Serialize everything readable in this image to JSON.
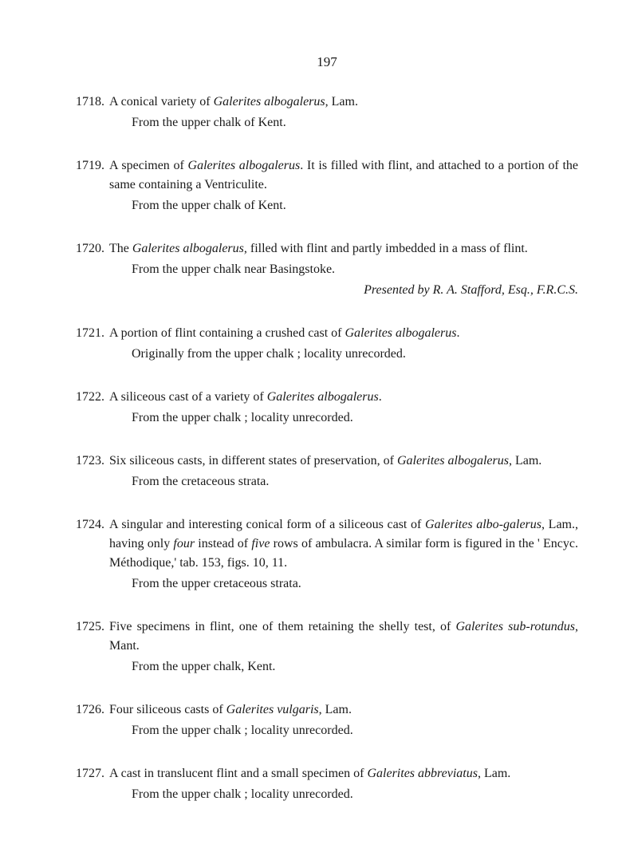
{
  "pageNumber": "197",
  "entries": [
    {
      "num": "1718.",
      "seg1": "A conical variety of ",
      "ital1": "Galerites albogalerus",
      "seg2": ", Lam.",
      "sub1": "From the upper chalk of Kent."
    },
    {
      "num": "1719.",
      "seg1": "A specimen of ",
      "ital1": "Galerites albogalerus",
      "seg2": ". It is filled with flint, and attached to a portion of the same containing a Ventriculite.",
      "sub1": "From the upper chalk of Kent."
    },
    {
      "num": "1720.",
      "seg1": "The ",
      "ital1": "Galerites albogalerus",
      "seg2": ", filled with flint and partly imbedded in a mass of flint.",
      "sub1": "From the upper chalk near Basingstoke.",
      "right_ital": "Presented by R. A. Stafford, Esq., F.R.C.S."
    },
    {
      "num": "1721.",
      "seg1": "A portion of flint containing a crushed cast of ",
      "ital1": "Galerites albogalerus",
      "seg2": ".",
      "sub1": "Originally from the upper chalk ; locality unrecorded."
    },
    {
      "num": "1722.",
      "seg1": "A siliceous cast of a variety of ",
      "ital1": "Galerites albogalerus",
      "seg2": ".",
      "sub1": "From the upper chalk ; locality unrecorded."
    },
    {
      "num": "1723.",
      "seg1": "Six siliceous casts, in different states of preservation, of ",
      "ital1": "Galerites albogalerus",
      "seg2": ", Lam.",
      "sub1": "From the cretaceous strata."
    },
    {
      "num": "1724.",
      "seg1": "A singular and interesting conical form of a siliceous cast of ",
      "ital1": "Galerites albo-galerus",
      "seg2": ", Lam., having only ",
      "ital2": "four",
      "seg3": " instead of ",
      "ital3": "five",
      "seg4": " rows of ambulacra. A similar form is figured in the ' Encyc. Méthodique,' tab. 153, figs. 10, 11.",
      "sub1": "From the upper cretaceous strata."
    },
    {
      "num": "1725.",
      "seg1": "Five specimens in flint, one of them retaining the shelly test, of ",
      "ital1": "Galerites sub-rotundus",
      "seg2": ", Mant.",
      "sub1": "From the upper chalk, Kent."
    },
    {
      "num": "1726.",
      "seg1": "Four siliceous casts of ",
      "ital1": "Galerites vulgaris",
      "seg2": ", Lam.",
      "sub1": "From the upper chalk ; locality unrecorded."
    },
    {
      "num": "1727.",
      "seg1": "A cast in translucent flint and a small specimen of ",
      "ital1": "Galerites abbreviatus",
      "seg2": ", Lam.",
      "sub1": "From the upper chalk ; locality unrecorded."
    }
  ]
}
